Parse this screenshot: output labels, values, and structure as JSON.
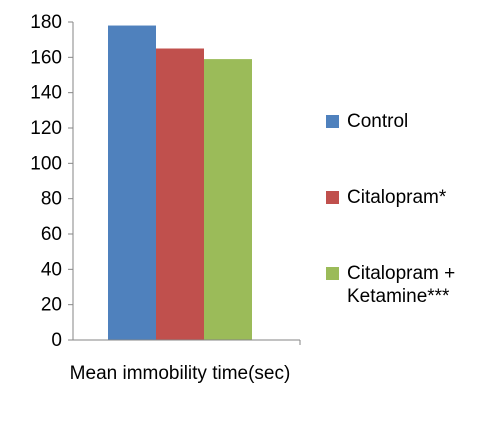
{
  "chart_data": {
    "type": "bar",
    "categories": [
      "Mean immobility time(sec)"
    ],
    "series": [
      {
        "name": "Control",
        "values": [
          178
        ],
        "color": "#4F81BD"
      },
      {
        "name": "Citalopram*",
        "values": [
          165
        ],
        "color": "#C0504D"
      },
      {
        "name": "Citalopram + Ketamine***",
        "values": [
          159
        ],
        "color": "#9BBB59"
      }
    ],
    "ylim": [
      0,
      180
    ],
    "yticks": [
      "0",
      "20",
      "40",
      "60",
      "80",
      "100",
      "120",
      "140",
      "160",
      "180"
    ],
    "grid": false,
    "legend_position": "right"
  },
  "legend": {
    "items": [
      {
        "label": "Control"
      },
      {
        "label": "Citalopram*"
      },
      {
        "label": "Citalopram +\nKetamine***"
      }
    ]
  }
}
